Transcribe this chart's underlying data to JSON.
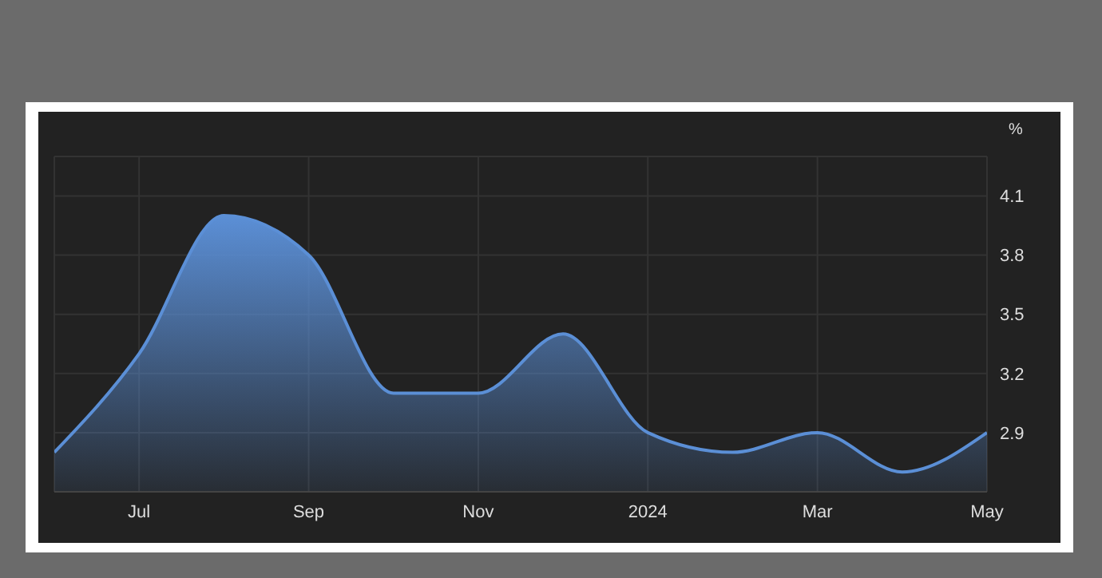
{
  "chart_data": {
    "type": "area",
    "ylabel": "%",
    "x": [
      "2023-06",
      "2023-07",
      "2023-08",
      "2023-09",
      "2023-10",
      "2023-11",
      "2023-12",
      "2024-01",
      "2024-02",
      "2024-03",
      "2024-04",
      "2024-05"
    ],
    "series": [
      {
        "color": "#5b8fd6",
        "values": [
          2.8,
          3.3,
          4.0,
          3.8,
          3.1,
          3.1,
          3.4,
          2.9,
          2.8,
          2.9,
          2.7,
          2.9
        ]
      }
    ],
    "xlim": [
      "2023-06",
      "2024-05"
    ],
    "xticks": [
      {
        "value": "2023-07",
        "label": "Jul"
      },
      {
        "value": "2023-09",
        "label": "Sep"
      },
      {
        "value": "2023-11",
        "label": "Nov"
      },
      {
        "value": "2024-01",
        "label": "2024"
      },
      {
        "value": "2024-03",
        "label": "Mar"
      },
      {
        "value": "2024-05",
        "label": "May"
      }
    ],
    "ylim": [
      2.6,
      4.3
    ],
    "yticks": [
      2.9,
      3.2,
      3.5,
      3.8,
      4.1
    ],
    "grid": true,
    "legend": false
  }
}
